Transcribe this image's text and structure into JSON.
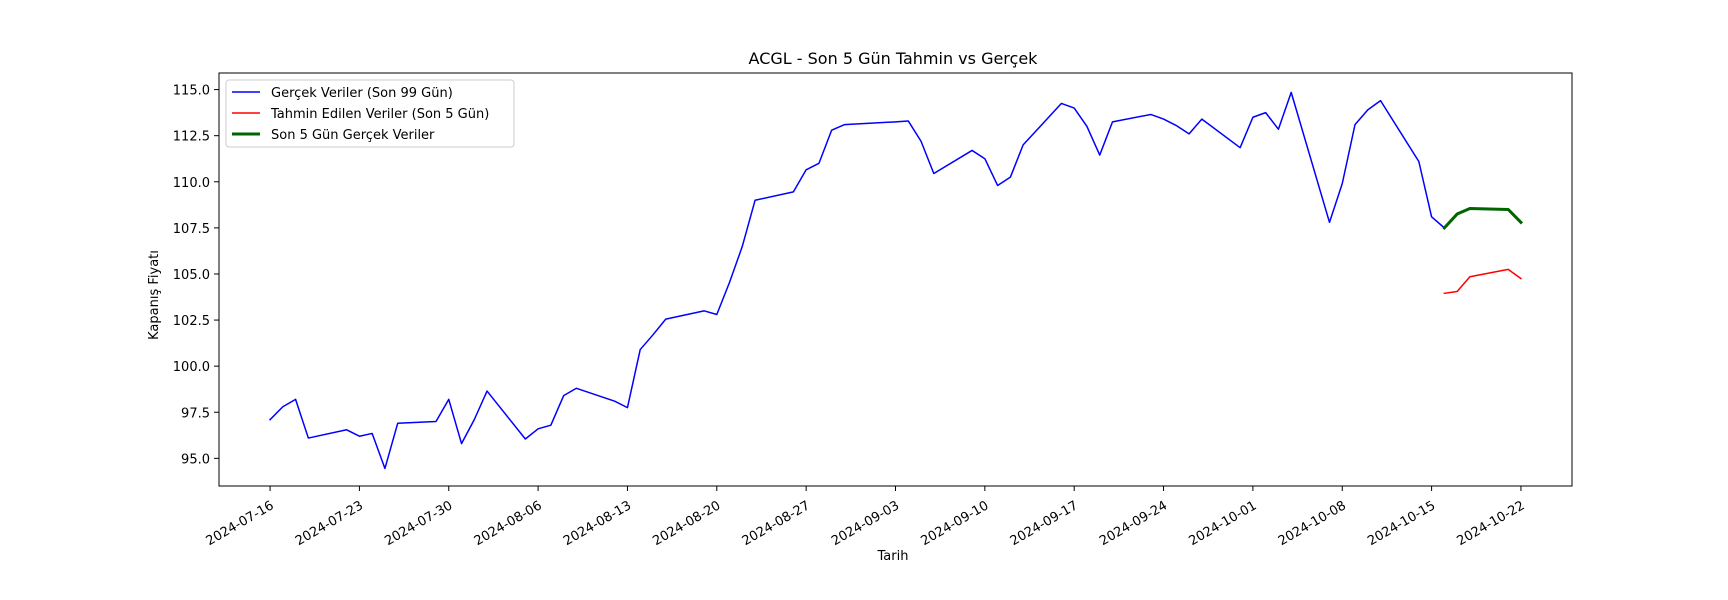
{
  "chart_data": {
    "type": "line",
    "title": "ACGL - Son 5 Gün Tahmin vs Gerçek",
    "xlabel": "Tarih",
    "ylabel": "Kapanış Fiyatı",
    "xlim": [
      "2024-07-12",
      "2024-10-26"
    ],
    "ylim": [
      93.5,
      115.9
    ],
    "x_ticks": [
      "2024-07-16",
      "2024-07-23",
      "2024-07-30",
      "2024-08-06",
      "2024-08-13",
      "2024-08-20",
      "2024-08-27",
      "2024-09-03",
      "2024-09-10",
      "2024-09-17",
      "2024-09-24",
      "2024-10-01",
      "2024-10-08",
      "2024-10-15",
      "2024-10-22"
    ],
    "y_ticks": [
      95.0,
      97.5,
      100.0,
      102.5,
      105.0,
      107.5,
      110.0,
      112.5,
      115.0
    ],
    "grid": false,
    "legend_position": "top-left",
    "series": [
      {
        "name": "Gerçek Veriler (Son 99 Gün)",
        "color": "#0000ff",
        "width": 1.5,
        "points": [
          [
            "2024-07-16",
            97.1
          ],
          [
            "2024-07-17",
            97.8
          ],
          [
            "2024-07-18",
            98.2
          ],
          [
            "2024-07-19",
            96.1
          ],
          [
            "2024-07-22",
            96.55
          ],
          [
            "2024-07-23",
            96.2
          ],
          [
            "2024-07-24",
            96.35
          ],
          [
            "2024-07-25",
            94.45
          ],
          [
            "2024-07-26",
            96.9
          ],
          [
            "2024-07-29",
            97.0
          ],
          [
            "2024-07-30",
            98.2
          ],
          [
            "2024-07-31",
            95.8
          ],
          [
            "2024-08-01",
            97.1
          ],
          [
            "2024-08-02",
            98.65
          ],
          [
            "2024-08-05",
            96.05
          ],
          [
            "2024-08-06",
            96.6
          ],
          [
            "2024-08-07",
            96.8
          ],
          [
            "2024-08-08",
            98.4
          ],
          [
            "2024-08-09",
            98.8
          ],
          [
            "2024-08-12",
            98.1
          ],
          [
            "2024-08-13",
            97.75
          ],
          [
            "2024-08-14",
            100.9
          ],
          [
            "2024-08-15",
            101.7
          ],
          [
            "2024-08-16",
            102.55
          ],
          [
            "2024-08-19",
            103.0
          ],
          [
            "2024-08-20",
            102.8
          ],
          [
            "2024-08-21",
            104.55
          ],
          [
            "2024-08-22",
            106.5
          ],
          [
            "2024-08-23",
            109.0
          ],
          [
            "2024-08-26",
            109.45
          ],
          [
            "2024-08-27",
            110.65
          ],
          [
            "2024-08-28",
            111.0
          ],
          [
            "2024-08-29",
            112.8
          ],
          [
            "2024-08-30",
            113.1
          ],
          [
            "2024-09-03",
            113.25
          ],
          [
            "2024-09-04",
            113.3
          ],
          [
            "2024-09-05",
            112.2
          ],
          [
            "2024-09-06",
            110.45
          ],
          [
            "2024-09-09",
            111.7
          ],
          [
            "2024-09-10",
            111.25
          ],
          [
            "2024-09-11",
            109.8
          ],
          [
            "2024-09-12",
            110.25
          ],
          [
            "2024-09-13",
            112.0
          ],
          [
            "2024-09-16",
            114.25
          ],
          [
            "2024-09-17",
            114.0
          ],
          [
            "2024-09-18",
            113.0
          ],
          [
            "2024-09-19",
            111.45
          ],
          [
            "2024-09-20",
            113.25
          ],
          [
            "2024-09-23",
            113.65
          ],
          [
            "2024-09-24",
            113.4
          ],
          [
            "2024-09-25",
            113.05
          ],
          [
            "2024-09-26",
            112.6
          ],
          [
            "2024-09-27",
            113.4
          ],
          [
            "2024-09-30",
            111.85
          ],
          [
            "2024-10-01",
            113.5
          ],
          [
            "2024-10-02",
            113.75
          ],
          [
            "2024-10-03",
            112.85
          ],
          [
            "2024-10-04",
            114.85
          ],
          [
            "2024-10-07",
            107.8
          ],
          [
            "2024-10-08",
            109.9
          ],
          [
            "2024-10-09",
            113.1
          ],
          [
            "2024-10-10",
            113.9
          ],
          [
            "2024-10-11",
            114.4
          ],
          [
            "2024-10-14",
            111.1
          ],
          [
            "2024-10-15",
            108.1
          ],
          [
            "2024-10-16",
            107.5
          ]
        ]
      },
      {
        "name": "Tahmin Edilen Veriler (Son 5 Gün)",
        "color": "#ff0000",
        "width": 1.5,
        "points": [
          [
            "2024-10-16",
            103.95
          ],
          [
            "2024-10-17",
            104.05
          ],
          [
            "2024-10-18",
            104.85
          ],
          [
            "2024-10-21",
            105.25
          ],
          [
            "2024-10-22",
            104.75
          ]
        ]
      },
      {
        "name": "Son 5 Gün Gerçek Veriler",
        "color": "#006400",
        "width": 3,
        "points": [
          [
            "2024-10-16",
            107.5
          ],
          [
            "2024-10-17",
            108.25
          ],
          [
            "2024-10-18",
            108.55
          ],
          [
            "2024-10-21",
            108.5
          ],
          [
            "2024-10-22",
            107.8
          ]
        ]
      }
    ]
  }
}
